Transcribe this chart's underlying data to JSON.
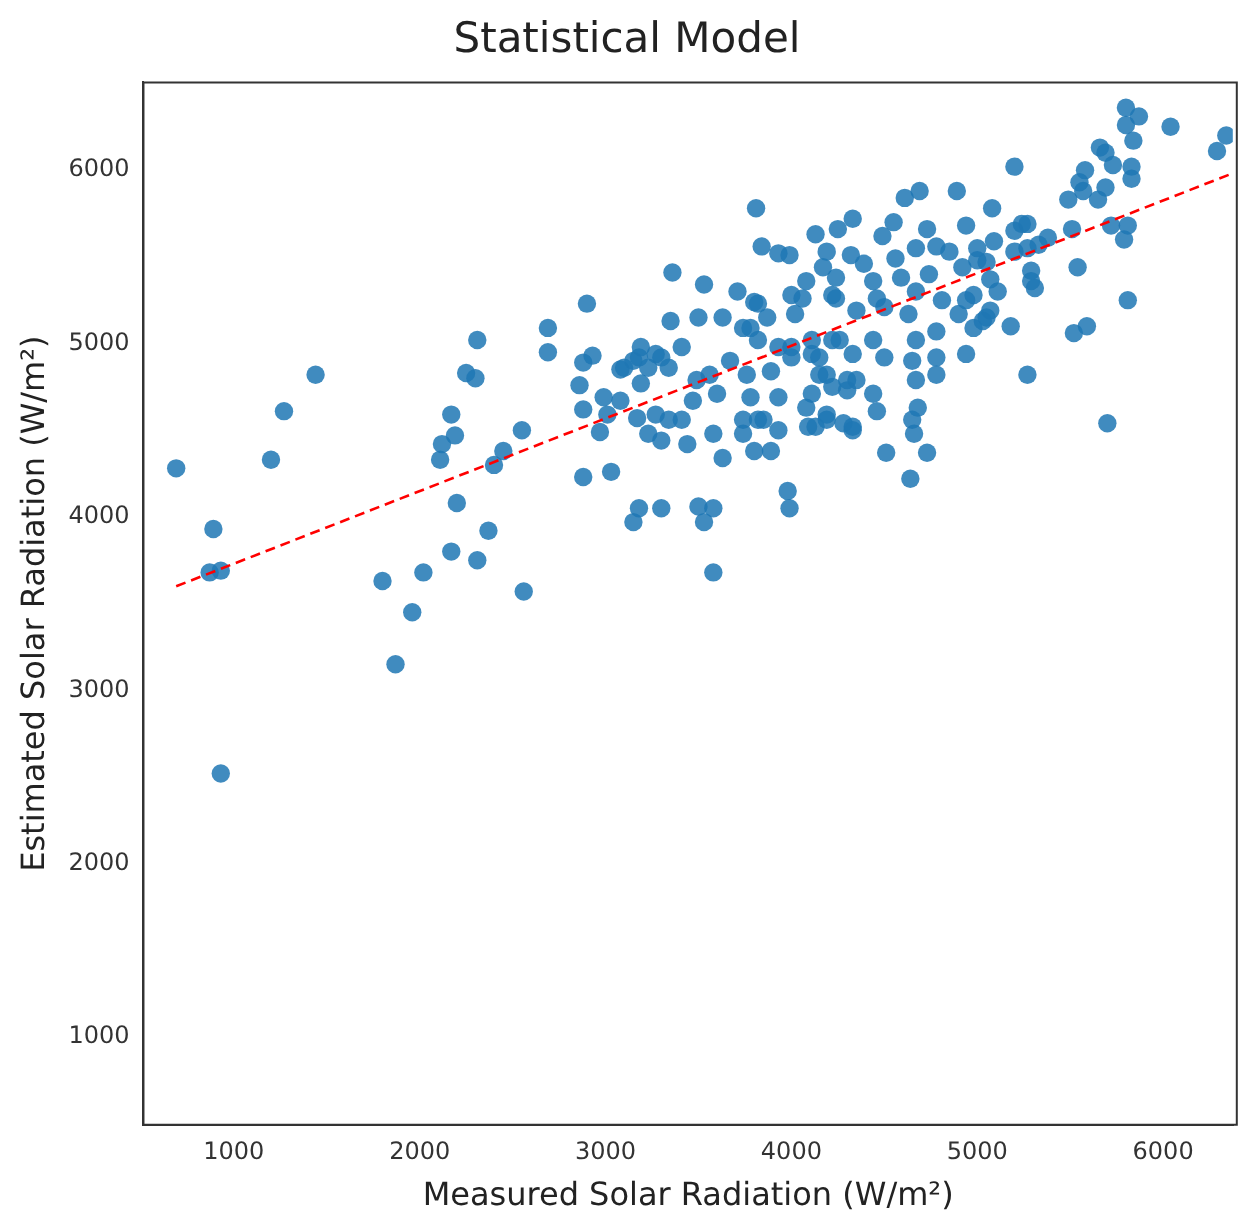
{
  "chart_data": {
    "type": "scatter",
    "title": "Statistical Model",
    "xlabel": "Measured Solar Radiation (W/m²)",
    "ylabel": "Estimated Solar Radiation (W/m²)",
    "xlim": [
      514,
      6375
    ],
    "ylim": [
      494,
      6506
    ],
    "xticks": [
      1000,
      2000,
      3000,
      4000,
      5000,
      6000
    ],
    "yticks": [
      1000,
      2000,
      3000,
      4000,
      5000,
      6000
    ],
    "grid": false,
    "legend": false,
    "marker": "circle",
    "series": [
      {
        "color": "#1f77b4",
        "x": [
          690,
          890,
          870,
          930,
          930,
          1200,
          1270,
          1440,
          1800,
          1870,
          1960,
          2020,
          2110,
          2120,
          2190,
          2170,
          2200,
          2170,
          2250,
          2300,
          2310,
          2310,
          2370,
          2400,
          2450,
          2550,
          2560,
          2690,
          2690,
          2880,
          3030,
          3150,
          3180,
          2860,
          2880,
          2880,
          2930,
          2970,
          2990,
          3080,
          3180,
          3190,
          3810,
          3360,
          3530,
          3840,
          3930,
          3990,
          4130,
          4250,
          4330,
          3350,
          3500,
          3630,
          3410,
          3300,
          3340,
          3710,
          3800,
          3740,
          3820,
          3490,
          3560,
          3670,
          3470,
          3600,
          3410,
          3580,
          3740,
          3850,
          3800,
          3890,
          3440,
          3630,
          3500,
          3580,
          3530,
          3300,
          3580,
          3980,
          3990,
          4080,
          4090,
          4190,
          4000,
          4110,
          4220,
          4000,
          4080,
          4170,
          4220,
          4150,
          4220,
          4300,
          4280,
          4330,
          2900,
          3010,
          3080,
          3100,
          3150,
          3190,
          3270,
          3230,
          3170,
          3270,
          3230,
          3300,
          3340,
          4610,
          4690,
          4890,
          5080,
          4550,
          4490,
          4730,
          4940,
          4190,
          4320,
          4390,
          4560,
          4670,
          4780,
          4850,
          5000,
          5090,
          4240,
          4440,
          4590,
          4740,
          4920,
          5050,
          4060,
          4240,
          4460,
          4670,
          4810,
          4980,
          5110,
          3820,
          3870,
          4020,
          4350,
          4500,
          4630,
          4900,
          5050,
          3780,
          3930,
          4110,
          4260,
          4440,
          4670,
          4780,
          4980,
          4000,
          4150,
          4330,
          4500,
          4650,
          4780,
          4940,
          3760,
          3890,
          4190,
          4350,
          4670,
          4780,
          3780,
          3930,
          4110,
          4300,
          4440,
          3820,
          4190,
          4460,
          4680,
          3740,
          3930,
          4130,
          4330,
          4650,
          4510,
          4730,
          4660,
          4640,
          5800,
          5870,
          5800,
          5840,
          6040,
          6290,
          6340,
          5200,
          5660,
          5690,
          5580,
          5730,
          5830,
          5830,
          5550,
          5570,
          5690,
          5490,
          5650,
          5240,
          5270,
          5200,
          5510,
          5720,
          5810,
          5790,
          5380,
          5330,
          5270,
          5000,
          5200,
          5070,
          5290,
          5290,
          5310,
          5540,
          5810,
          4940,
          5070,
          5030,
          5180,
          5590,
          5520,
          5270,
          5700
        ],
        "values": [
          4280,
          3930,
          3680,
          3690,
          2520,
          4330,
          4610,
          4820,
          3630,
          3150,
          3450,
          3680,
          4330,
          4420,
          4470,
          4590,
          4080,
          3800,
          4830,
          4800,
          5020,
          3750,
          3920,
          4300,
          4380,
          4500,
          3570,
          5090,
          4950,
          4230,
          4260,
          3970,
          4050,
          4760,
          4620,
          4890,
          4930,
          4490,
          4690,
          4850,
          4920,
          4770,
          5780,
          5410,
          5340,
          5560,
          5520,
          5510,
          5630,
          5660,
          5720,
          5130,
          5150,
          5150,
          4980,
          4920,
          4860,
          5300,
          5240,
          5090,
          5020,
          4790,
          4820,
          4900,
          4670,
          4710,
          4560,
          4480,
          4560,
          4560,
          4380,
          4380,
          4420,
          4340,
          4060,
          4050,
          3970,
          4050,
          3680,
          4150,
          4050,
          4630,
          4520,
          4560,
          4980,
          4940,
          5020,
          5280,
          5360,
          5440,
          5280,
          4820,
          4750,
          4790,
          4540,
          4520,
          5230,
          4590,
          4670,
          4860,
          4900,
          4980,
          4940,
          4860,
          4570,
          4590,
          4480,
          4440,
          4560,
          5840,
          5880,
          5880,
          5780,
          5700,
          5620,
          5660,
          5680,
          5530,
          5510,
          5460,
          5490,
          5550,
          5560,
          5530,
          5550,
          5590,
          5380,
          5360,
          5380,
          5400,
          5440,
          5470,
          5260,
          5260,
          5260,
          5300,
          5250,
          5280,
          5300,
          5230,
          5150,
          5170,
          5190,
          5210,
          5170,
          5170,
          5150,
          5090,
          4980,
          5020,
          5020,
          5020,
          5020,
          5070,
          5090,
          4920,
          4920,
          4940,
          4920,
          4900,
          4920,
          4940,
          4820,
          4840,
          4820,
          4790,
          4790,
          4820,
          4690,
          4690,
          4710,
          4730,
          4710,
          4560,
          4590,
          4610,
          4630,
          4480,
          4500,
          4520,
          4500,
          4560,
          4370,
          4370,
          4480,
          4220,
          6360,
          6310,
          6260,
          6170,
          6250,
          6110,
          6200,
          6020,
          6130,
          6100,
          6000,
          6030,
          6020,
          5950,
          5930,
          5880,
          5900,
          5830,
          5830,
          5690,
          5690,
          5650,
          5660,
          5680,
          5680,
          5600,
          5610,
          5570,
          5550,
          5480,
          5530,
          5370,
          5420,
          5360,
          5320,
          5440,
          5250,
          5250,
          5190,
          5130,
          5100,
          5100,
          5060,
          4820,
          4540
        ]
      },
      {
        "type": "line",
        "color": "#ff0000",
        "line_style": "dashed",
        "marker": "none",
        "x": [
          690,
          6370
        ],
        "values": [
          3600,
          5980
        ]
      }
    ]
  }
}
